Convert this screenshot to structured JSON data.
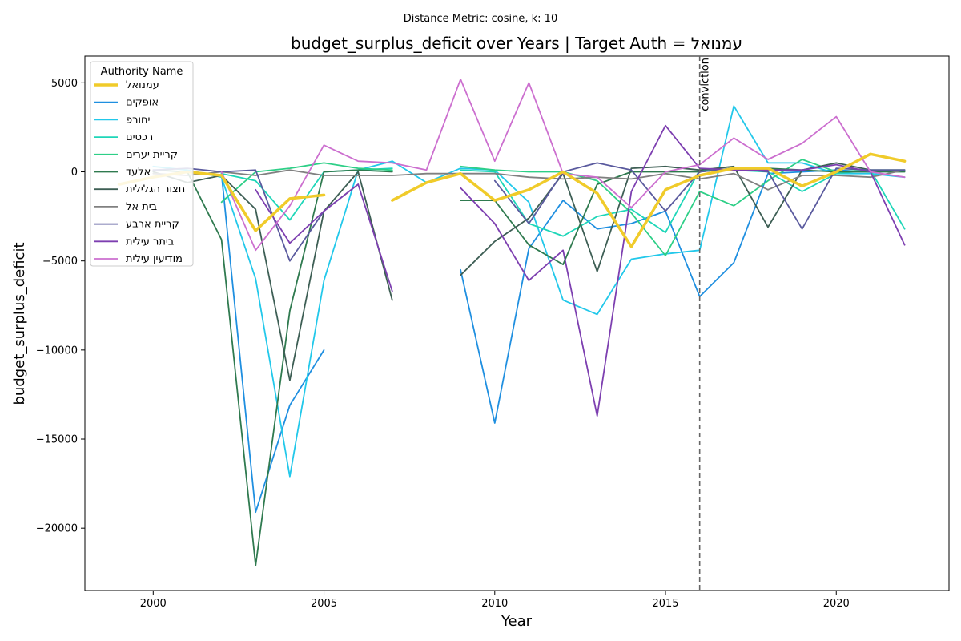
{
  "chart_data": {
    "type": "line",
    "suptitle": "Distance Metric: cosine, k: 10",
    "title": "budget_surplus_deficit over Years | Target Auth = עמנואל",
    "xlabel": "Year",
    "ylabel": "budget_surplus_deficit",
    "xlim": [
      1998,
      2023.3
    ],
    "ylim": [
      -23500,
      6500
    ],
    "xticks": [
      2000,
      2005,
      2010,
      2015,
      2020
    ],
    "yticks": [
      5000,
      0,
      -5000,
      -10000,
      -15000,
      -20000
    ],
    "xtick_labels": [
      "2000",
      "2005",
      "2010",
      "2015",
      "2020"
    ],
    "ytick_labels": [
      "5000",
      "0",
      "−5000",
      "−10000",
      "−15000",
      "−20000"
    ],
    "legend": {
      "title": "Authority Name",
      "position": "upper-left"
    },
    "annotation": {
      "label": "conviction",
      "x": 2016
    },
    "series": [
      {
        "name": "עמנואל",
        "color": "#f0cb2a",
        "width": 3.5,
        "points": [
          [
            1999,
            -700
          ],
          [
            2000,
            -300
          ],
          [
            2001,
            0
          ],
          [
            2002,
            -200
          ],
          [
            2003,
            -3300
          ],
          [
            2004,
            -1500
          ],
          [
            2005,
            -1300
          ],
          null,
          [
            2007,
            -1600
          ],
          [
            2008,
            -600
          ],
          [
            2009,
            -100
          ],
          [
            2010,
            -1600
          ],
          [
            2011,
            -1000
          ],
          [
            2012,
            0
          ],
          [
            2013,
            -1200
          ],
          [
            2014,
            -4200
          ],
          [
            2015,
            -1000
          ],
          [
            2016,
            -200
          ],
          [
            2017,
            200
          ],
          [
            2018,
            200
          ],
          [
            2019,
            -800
          ],
          [
            2020,
            0
          ],
          [
            2021,
            1000
          ],
          [
            2022,
            600
          ]
        ]
      },
      {
        "name": "אופקים",
        "color": "#1f8fe0",
        "width": 1.8,
        "points": [
          [
            2002,
            -100
          ],
          [
            2003,
            -19100
          ],
          [
            2004,
            -13100
          ],
          [
            2005,
            -10000
          ],
          null,
          [
            2009,
            -5500
          ],
          [
            2010,
            -14100
          ],
          [
            2011,
            -4300
          ],
          [
            2012,
            -1600
          ],
          [
            2013,
            -3200
          ],
          [
            2014,
            -2900
          ],
          [
            2015,
            -2200
          ],
          [
            2016,
            -7000
          ],
          [
            2017,
            -5100
          ],
          [
            2018,
            -100
          ],
          [
            2019,
            0
          ],
          [
            2020,
            100
          ],
          [
            2021,
            0
          ],
          [
            2022,
            100
          ]
        ]
      },
      {
        "name": "יחורפ",
        "color": "#22c8ea",
        "width": 1.8,
        "points": [
          [
            2000,
            300
          ],
          [
            2001,
            100
          ],
          [
            2002,
            -300
          ],
          [
            2003,
            -6000
          ],
          [
            2004,
            -17100
          ],
          [
            2005,
            -6100
          ],
          [
            2006,
            100
          ],
          [
            2007,
            600
          ],
          [
            2008,
            -600
          ],
          [
            2009,
            200
          ],
          [
            2010,
            100
          ],
          [
            2011,
            -1700
          ],
          [
            2012,
            -7200
          ],
          [
            2013,
            -8000
          ],
          [
            2014,
            -4900
          ],
          [
            2015,
            -4600
          ],
          [
            2016,
            -4400
          ],
          [
            2017,
            3700
          ],
          [
            2018,
            500
          ],
          [
            2019,
            500
          ],
          [
            2020,
            -100
          ],
          [
            2021,
            -100
          ],
          [
            2022,
            -300
          ]
        ]
      },
      {
        "name": "רכסים",
        "color": "#1ed6b8",
        "width": 1.8,
        "points": [
          [
            2002,
            -100
          ],
          [
            2003,
            -500
          ],
          [
            2004,
            -2700
          ],
          [
            2005,
            0
          ],
          [
            2006,
            100
          ],
          [
            2007,
            200
          ],
          null,
          [
            2009,
            100
          ],
          [
            2010,
            0
          ],
          [
            2011,
            -2900
          ],
          [
            2012,
            -3600
          ],
          [
            2013,
            -2500
          ],
          [
            2014,
            -2100
          ],
          [
            2015,
            -3400
          ],
          [
            2016,
            100
          ],
          [
            2017,
            100
          ],
          [
            2018,
            0
          ],
          [
            2019,
            -1100
          ],
          [
            2020,
            -100
          ],
          [
            2021,
            100
          ],
          [
            2022,
            -3200
          ]
        ]
      },
      {
        "name": "קריית יערים",
        "color": "#2ecf87",
        "width": 1.8,
        "points": [
          [
            2002,
            -1700
          ],
          [
            2003,
            0
          ],
          [
            2004,
            200
          ],
          [
            2005,
            500
          ],
          [
            2006,
            200
          ],
          [
            2007,
            100
          ],
          null,
          [
            2009,
            300
          ],
          [
            2010,
            100
          ],
          [
            2011,
            0
          ],
          [
            2012,
            0
          ],
          [
            2013,
            -500
          ],
          [
            2014,
            -2300
          ],
          [
            2015,
            -4700
          ],
          [
            2016,
            -1100
          ],
          [
            2017,
            -1900
          ],
          [
            2018,
            -500
          ],
          [
            2019,
            700
          ],
          [
            2020,
            0
          ],
          [
            2021,
            100
          ],
          [
            2022,
            100
          ]
        ]
      },
      {
        "name": "אלעד",
        "color": "#2f7a4f",
        "width": 1.8,
        "points": [
          [
            2000,
            100
          ],
          [
            2001,
            0
          ],
          [
            2002,
            -3800
          ],
          [
            2003,
            -22100
          ],
          [
            2004,
            -7800
          ],
          [
            2005,
            0
          ],
          [
            2006,
            100
          ],
          [
            2007,
            0
          ],
          null,
          [
            2009,
            -1600
          ],
          [
            2010,
            -1600
          ],
          [
            2011,
            -4100
          ],
          [
            2012,
            -5200
          ],
          [
            2013,
            -700
          ],
          [
            2014,
            0
          ],
          [
            2015,
            0
          ],
          [
            2016,
            0
          ],
          [
            2017,
            200
          ],
          [
            2018,
            200
          ],
          [
            2019,
            100
          ],
          [
            2020,
            0
          ],
          [
            2021,
            0
          ],
          [
            2022,
            0
          ]
        ]
      },
      {
        "name": "חצור הגלילית",
        "color": "#3d5e54",
        "width": 1.8,
        "points": [
          [
            2000,
            0
          ],
          [
            2001,
            -600
          ],
          [
            2002,
            -200
          ],
          [
            2003,
            -2100
          ],
          [
            2004,
            -11700
          ],
          [
            2005,
            -2200
          ],
          [
            2006,
            0
          ],
          [
            2007,
            -7200
          ],
          null,
          [
            2009,
            -5800
          ],
          [
            2010,
            -3900
          ],
          [
            2011,
            -2600
          ],
          [
            2012,
            -100
          ],
          [
            2013,
            -5600
          ],
          [
            2014,
            200
          ],
          [
            2015,
            300
          ],
          [
            2016,
            100
          ],
          [
            2017,
            300
          ],
          [
            2018,
            -3100
          ],
          [
            2019,
            100
          ],
          [
            2020,
            500
          ],
          [
            2021,
            100
          ],
          [
            2022,
            100
          ]
        ]
      },
      {
        "name": "בית אל",
        "color": "#808080",
        "width": 1.8,
        "points": [
          [
            2000,
            -100
          ],
          [
            2001,
            -200
          ],
          [
            2002,
            0
          ],
          [
            2003,
            -200
          ],
          [
            2004,
            100
          ],
          [
            2005,
            -200
          ],
          [
            2006,
            -200
          ],
          [
            2007,
            -200
          ],
          [
            2008,
            -100
          ],
          [
            2009,
            -100
          ],
          [
            2010,
            -100
          ],
          [
            2011,
            -300
          ],
          [
            2012,
            -400
          ],
          [
            2013,
            -300
          ],
          [
            2014,
            -400
          ],
          [
            2015,
            -100
          ],
          [
            2016,
            -400
          ],
          [
            2017,
            -100
          ],
          [
            2018,
            -1000
          ],
          [
            2019,
            -200
          ],
          [
            2020,
            -200
          ],
          [
            2021,
            -300
          ],
          [
            2022,
            100
          ]
        ]
      },
      {
        "name": "קריית ארבע",
        "color": "#5a5a9e",
        "width": 1.8,
        "points": [
          [
            2000,
            100
          ],
          [
            2001,
            200
          ],
          [
            2002,
            0
          ],
          [
            2003,
            100
          ],
          [
            2004,
            -5000
          ],
          [
            2005,
            -2200
          ],
          [
            2006,
            -700
          ],
          null,
          [
            2010,
            -500
          ],
          [
            2011,
            -2900
          ],
          [
            2012,
            0
          ],
          [
            2013,
            500
          ],
          [
            2014,
            100
          ],
          [
            2015,
            -2200
          ],
          [
            2016,
            0
          ],
          [
            2017,
            200
          ],
          [
            2018,
            0
          ],
          [
            2019,
            -3200
          ],
          [
            2020,
            200
          ],
          [
            2021,
            100
          ],
          [
            2022,
            100
          ]
        ]
      },
      {
        "name": "ביתר עילית",
        "color": "#7d3fb0",
        "width": 1.8,
        "points": [
          [
            2003,
            -1000
          ],
          [
            2004,
            -4000
          ],
          [
            2005,
            -2200
          ],
          [
            2006,
            -700
          ],
          [
            2007,
            -6700
          ],
          null,
          [
            2009,
            -900
          ],
          [
            2010,
            -2900
          ],
          [
            2011,
            -6100
          ],
          [
            2012,
            -4400
          ],
          [
            2013,
            -13700
          ],
          [
            2014,
            -1100
          ],
          [
            2015,
            2600
          ],
          [
            2016,
            200
          ],
          [
            2017,
            100
          ],
          [
            2018,
            100
          ],
          [
            2019,
            100
          ],
          [
            2020,
            400
          ],
          [
            2021,
            0
          ],
          [
            2022,
            -4100
          ]
        ]
      },
      {
        "name": "מודיעין עילית",
        "color": "#cc6fcf",
        "width": 1.8,
        "points": [
          [
            2002,
            0
          ],
          [
            2003,
            -4400
          ],
          [
            2004,
            -1900
          ],
          [
            2005,
            1500
          ],
          [
            2006,
            600
          ],
          [
            2007,
            500
          ],
          [
            2008,
            100
          ],
          [
            2009,
            5200
          ],
          [
            2010,
            600
          ],
          [
            2011,
            5000
          ],
          [
            2012,
            -100
          ],
          [
            2013,
            -300
          ],
          [
            2014,
            -2000
          ],
          [
            2015,
            0
          ],
          [
            2016,
            400
          ],
          [
            2017,
            1900
          ],
          [
            2018,
            700
          ],
          [
            2019,
            1600
          ],
          [
            2020,
            3100
          ],
          [
            2021,
            0
          ],
          [
            2022,
            -300
          ]
        ]
      }
    ]
  }
}
